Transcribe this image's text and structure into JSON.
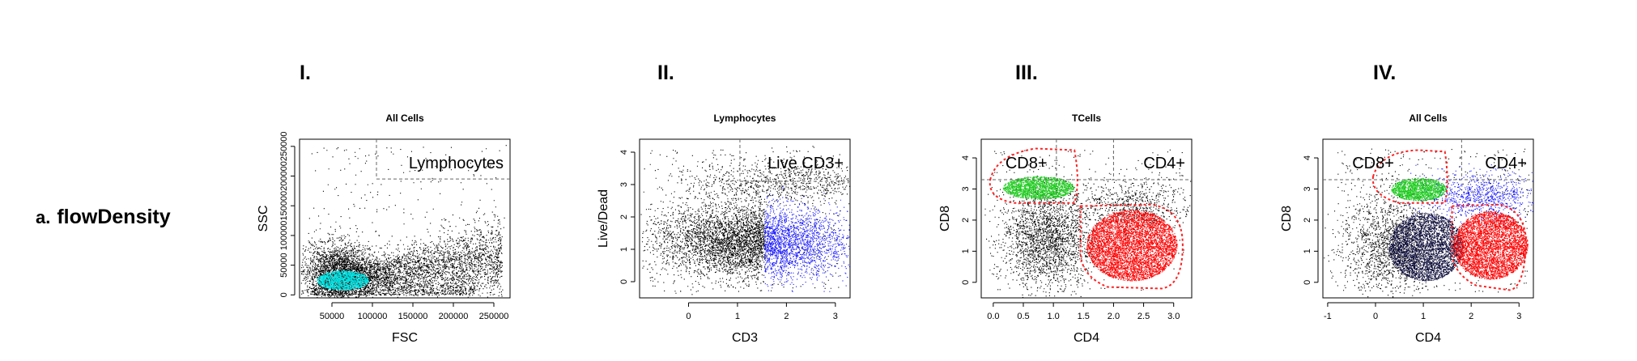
{
  "row_label": {
    "letter": "a.",
    "name": "flowDensity"
  },
  "panels_roman": [
    "I.",
    "II.",
    "III.",
    "IV."
  ],
  "colors": {
    "points": "#000000",
    "cyan": "#00e5e5",
    "blue": "#1a1aff",
    "green": "#1fcc1f",
    "red": "#ff0000",
    "gate_line": "#666666",
    "red_gate": "#ff2222"
  },
  "chart_data": [
    {
      "type": "scatter",
      "title": "All Cells",
      "xlabel": "FSC",
      "ylabel": "SSC",
      "xlim": [
        10000,
        270000
      ],
      "ylim": [
        -5000,
        262000
      ],
      "xticks": [
        50000,
        100000,
        150000,
        200000,
        250000
      ],
      "xtick_labels": [
        "50000",
        "100000",
        "150000",
        "200000",
        "250000"
      ],
      "yticks": [
        0,
        50000,
        100000,
        150000,
        200000,
        250000
      ],
      "ytick_labels": [
        "0",
        "50000",
        "100000",
        "150000",
        "200000",
        "250000"
      ],
      "gate_label": "Lymphocytes",
      "gate": {
        "x_min": 105000,
        "y_min": 195000
      },
      "highlight_color": "cyan"
    },
    {
      "type": "scatter",
      "title": "Lymphocytes",
      "xlabel": "CD3",
      "ylabel": "Live/Dead",
      "xlim": [
        -1.0,
        3.3
      ],
      "ylim": [
        -0.5,
        4.4
      ],
      "xticks": [
        0,
        1,
        2,
        3
      ],
      "xtick_labels": [
        "0",
        "1",
        "2",
        "3"
      ],
      "yticks": [
        0,
        1,
        2,
        3,
        4
      ],
      "ytick_labels": [
        "0",
        "1",
        "2",
        "3",
        "4"
      ],
      "gate_label": "Live CD3+",
      "gate": {
        "x_min": 1.05,
        "y_min": 3.1
      },
      "split_x": 1.55,
      "highlight_color": "blue"
    },
    {
      "type": "scatter",
      "title": "TCells",
      "xlabel": "CD4",
      "ylabel": "CD8",
      "xlim": [
        -0.2,
        3.3
      ],
      "ylim": [
        -0.5,
        4.6
      ],
      "xticks": [
        0.0,
        0.5,
        1.0,
        1.5,
        2.0,
        2.5,
        3.0
      ],
      "xtick_labels": [
        "0.0",
        "0.5",
        "1.0",
        "1.5",
        "2.0",
        "2.5",
        "3.0"
      ],
      "yticks": [
        0,
        1,
        2,
        3,
        4
      ],
      "ytick_labels": [
        "0",
        "1",
        "2",
        "3",
        "4"
      ],
      "gate_labels": [
        "CD8+",
        "CD4+"
      ],
      "h_threshold": 3.3,
      "v_threshold": 1.05,
      "v_threshold2": 2.0
    },
    {
      "type": "scatter",
      "title": "All Cells",
      "xlabel": "CD4",
      "ylabel": "CD8",
      "xlim": [
        -1.1,
        3.3
      ],
      "ylim": [
        -0.5,
        4.6
      ],
      "xticks": [
        -1,
        0,
        1,
        2,
        3
      ],
      "xtick_labels": [
        "-1",
        "0",
        "1",
        "2",
        "3"
      ],
      "yticks": [
        0,
        1,
        2,
        3,
        4
      ],
      "ytick_labels": [
        "0",
        "1",
        "2",
        "3",
        "4"
      ],
      "gate_labels": [
        "CD8+",
        "CD4+"
      ],
      "h_threshold": 3.3,
      "v_threshold": 1.8
    }
  ]
}
